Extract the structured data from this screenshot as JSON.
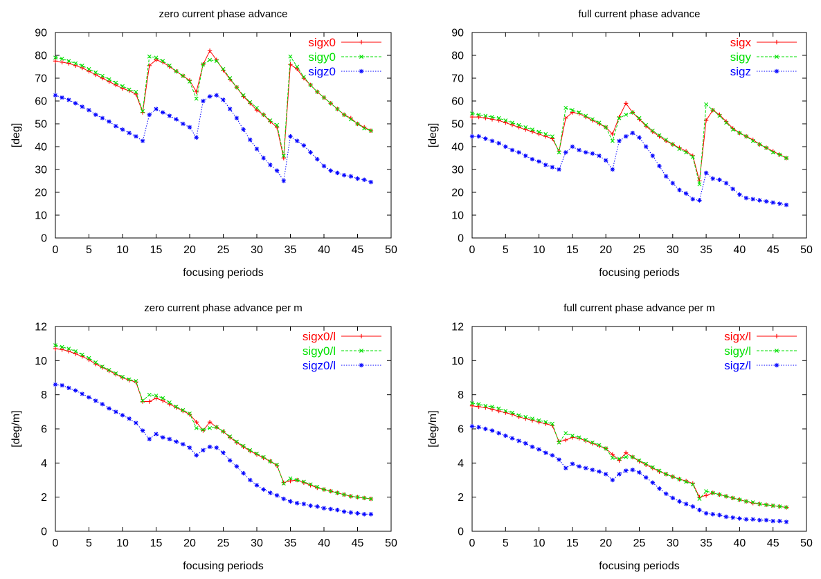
{
  "colors": {
    "x": "#ff0000",
    "y": "#00e000",
    "z": "#0000ff",
    "axis": "#000000"
  },
  "chart_data": [
    {
      "type": "line",
      "title": "zero current phase advance",
      "xlabel": "focusing periods",
      "ylabel": "[deg]",
      "xlim": [
        0,
        50
      ],
      "ylim": [
        0,
        90
      ],
      "xticks": [
        0,
        5,
        10,
        15,
        20,
        25,
        30,
        35,
        40,
        45,
        50
      ],
      "yticks": [
        0,
        10,
        20,
        30,
        40,
        50,
        60,
        70,
        80,
        90
      ],
      "legend_position": "top-right",
      "grid": false,
      "x": [
        0,
        1,
        2,
        3,
        4,
        5,
        6,
        7,
        8,
        9,
        10,
        11,
        12,
        13,
        14,
        15,
        16,
        17,
        18,
        19,
        20,
        21,
        22,
        23,
        24,
        25,
        26,
        27,
        28,
        29,
        30,
        31,
        32,
        33,
        34,
        35,
        36,
        37,
        38,
        39,
        40,
        41,
        42,
        43,
        44,
        45,
        46,
        47
      ],
      "series": [
        {
          "name": "sigx0",
          "style": "solid",
          "marker": "+",
          "color_key": "x",
          "values": [
            77.5,
            77,
            76.5,
            75.5,
            74.5,
            73,
            71.5,
            70,
            68.5,
            67,
            65.5,
            64.5,
            63,
            55,
            75.5,
            78,
            77,
            75,
            73,
            71,
            69,
            64,
            76,
            82,
            78,
            73.5,
            69.5,
            66,
            62,
            59,
            56,
            54,
            51,
            48.5,
            35,
            76,
            74,
            70,
            67,
            64,
            61.5,
            59,
            56.5,
            54,
            52.5,
            50,
            48.5,
            47
          ]
        },
        {
          "name": "sigy0",
          "style": "dashed",
          "marker": "x",
          "color_key": "y",
          "values": [
            79,
            78.5,
            77.5,
            76.5,
            75.5,
            74,
            72.5,
            71,
            69.5,
            68,
            66.5,
            65,
            64,
            55.5,
            79.5,
            79,
            77.5,
            75.5,
            73,
            71,
            68.5,
            61,
            76,
            78,
            77.5,
            74,
            70,
            66,
            62.5,
            59.5,
            57,
            54,
            51.5,
            49.5,
            36,
            79.5,
            75,
            70.5,
            67,
            64,
            61.5,
            59,
            56.5,
            54,
            52,
            50,
            48,
            47
          ]
        },
        {
          "name": "sigz0",
          "style": "dotted",
          "marker": "*",
          "color_key": "z",
          "values": [
            62.5,
            61.5,
            60.5,
            59,
            57.5,
            56,
            54,
            52.5,
            51,
            49,
            47.5,
            46,
            44.5,
            42.5,
            54,
            56.5,
            55,
            53.5,
            52,
            50,
            48.5,
            44,
            60,
            62,
            62.5,
            60.5,
            56.5,
            52.5,
            47.5,
            43,
            39,
            35,
            32,
            29.5,
            25,
            44.5,
            42.5,
            40.5,
            37.5,
            34.5,
            31.5,
            29.5,
            28.5,
            27.5,
            27,
            26,
            25.5,
            24.5
          ]
        }
      ]
    },
    {
      "type": "line",
      "title": "full current phase advance",
      "xlabel": "focusing periods",
      "ylabel": "[deg]",
      "xlim": [
        0,
        50
      ],
      "ylim": [
        0,
        90
      ],
      "xticks": [
        0,
        5,
        10,
        15,
        20,
        25,
        30,
        35,
        40,
        45,
        50
      ],
      "yticks": [
        0,
        10,
        20,
        30,
        40,
        50,
        60,
        70,
        80,
        90
      ],
      "legend_position": "top-right",
      "grid": false,
      "x": [
        0,
        1,
        2,
        3,
        4,
        5,
        6,
        7,
        8,
        9,
        10,
        11,
        12,
        13,
        14,
        15,
        16,
        17,
        18,
        19,
        20,
        21,
        22,
        23,
        24,
        25,
        26,
        27,
        28,
        29,
        30,
        31,
        32,
        33,
        34,
        35,
        36,
        37,
        38,
        39,
        40,
        41,
        42,
        43,
        44,
        45,
        46,
        47
      ],
      "series": [
        {
          "name": "sigx",
          "style": "solid",
          "marker": "+",
          "color_key": "x",
          "values": [
            53,
            53,
            52.5,
            52,
            51.5,
            50.5,
            49.5,
            48.5,
            47.5,
            46.5,
            45.5,
            44.5,
            43.5,
            38,
            52.5,
            55,
            54.5,
            53,
            51.5,
            50,
            48.5,
            45.5,
            53,
            59,
            55,
            52,
            49,
            46.5,
            44.5,
            42.5,
            41,
            39.5,
            38,
            36,
            25,
            51.5,
            56,
            54,
            51,
            48,
            46,
            44.5,
            43,
            41,
            39.5,
            38,
            36.5,
            35
          ]
        },
        {
          "name": "sigy",
          "style": "dashed",
          "marker": "x",
          "color_key": "y",
          "values": [
            54.5,
            54,
            53.5,
            53,
            52.5,
            51.5,
            50.5,
            49.5,
            48.5,
            47.5,
            46.5,
            45.5,
            44.5,
            37.5,
            57,
            56,
            55,
            53.5,
            52,
            50.5,
            48.5,
            42.5,
            52.5,
            54,
            55,
            52.5,
            49.5,
            47,
            45,
            43,
            41,
            39,
            37.5,
            35.5,
            23.5,
            58.5,
            56,
            53.5,
            50.5,
            47.5,
            46,
            44.5,
            42.5,
            41,
            39.5,
            37.5,
            36.5,
            35
          ]
        },
        {
          "name": "sigz",
          "style": "dotted",
          "marker": "*",
          "color_key": "z",
          "values": [
            44.5,
            44.5,
            43.5,
            42.5,
            41.5,
            40,
            38.5,
            37.5,
            36,
            34.5,
            33.5,
            32,
            31,
            30,
            37.5,
            40,
            38.5,
            37.5,
            37,
            36,
            34,
            30,
            42.5,
            44.5,
            46,
            44,
            40,
            36,
            31.5,
            27,
            24,
            21,
            19.5,
            17,
            16.5,
            28.5,
            26,
            25.5,
            24,
            21.5,
            19,
            17.5,
            17,
            16.5,
            16,
            15.5,
            15,
            14.5
          ]
        }
      ]
    },
    {
      "type": "line",
      "title": "zero current phase advance per m",
      "xlabel": "focusing periods",
      "ylabel": "[deg/m]",
      "xlim": [
        0,
        50
      ],
      "ylim": [
        0,
        12
      ],
      "xticks": [
        0,
        5,
        10,
        15,
        20,
        25,
        30,
        35,
        40,
        45,
        50
      ],
      "yticks": [
        0,
        2,
        4,
        6,
        8,
        10,
        12
      ],
      "legend_position": "top-right",
      "grid": false,
      "x": [
        0,
        1,
        2,
        3,
        4,
        5,
        6,
        7,
        8,
        9,
        10,
        11,
        12,
        13,
        14,
        15,
        16,
        17,
        18,
        19,
        20,
        21,
        22,
        23,
        24,
        25,
        26,
        27,
        28,
        29,
        30,
        31,
        32,
        33,
        34,
        35,
        36,
        37,
        38,
        39,
        40,
        41,
        42,
        43,
        44,
        45,
        46,
        47
      ],
      "series": [
        {
          "name": "sigx0/l",
          "style": "solid",
          "marker": "+",
          "color_key": "x",
          "values": [
            10.7,
            10.65,
            10.55,
            10.4,
            10.25,
            10.05,
            9.8,
            9.6,
            9.4,
            9.2,
            9,
            8.85,
            8.75,
            7.6,
            7.6,
            7.8,
            7.65,
            7.45,
            7.25,
            7.05,
            6.85,
            6.4,
            5.9,
            6.4,
            6.1,
            5.85,
            5.5,
            5.2,
            4.95,
            4.7,
            4.5,
            4.3,
            4.1,
            3.85,
            2.85,
            2.95,
            3,
            2.85,
            2.7,
            2.55,
            2.45,
            2.35,
            2.25,
            2.15,
            2.05,
            2,
            1.95,
            1.9
          ]
        },
        {
          "name": "sigy0/l",
          "style": "dashed",
          "marker": "x",
          "color_key": "y",
          "values": [
            10.9,
            10.8,
            10.7,
            10.55,
            10.35,
            10.15,
            9.9,
            9.65,
            9.45,
            9.25,
            9.05,
            8.9,
            8.8,
            7.65,
            8,
            7.95,
            7.8,
            7.55,
            7.3,
            7.1,
            6.9,
            6.05,
            5.95,
            6.05,
            6.1,
            5.85,
            5.55,
            5.25,
            5,
            4.75,
            4.55,
            4.35,
            4.1,
            3.9,
            2.8,
            3.1,
            3,
            2.9,
            2.75,
            2.6,
            2.45,
            2.35,
            2.25,
            2.15,
            2.05,
            2,
            1.95,
            1.9
          ]
        },
        {
          "name": "sigz0/l",
          "style": "dotted",
          "marker": "*",
          "color_key": "z",
          "values": [
            8.6,
            8.55,
            8.4,
            8.25,
            8.05,
            7.85,
            7.65,
            7.45,
            7.2,
            7,
            6.8,
            6.6,
            6.35,
            5.9,
            5.4,
            5.7,
            5.5,
            5.4,
            5.25,
            5.1,
            4.9,
            4.45,
            4.75,
            4.95,
            4.9,
            4.6,
            4.15,
            3.8,
            3.4,
            3,
            2.7,
            2.45,
            2.25,
            2.1,
            1.9,
            1.75,
            1.65,
            1.6,
            1.5,
            1.45,
            1.35,
            1.3,
            1.25,
            1.15,
            1.1,
            1.05,
            1,
            1
          ]
        }
      ]
    },
    {
      "type": "line",
      "title": "full current phase advance per m",
      "xlabel": "focusing periods",
      "ylabel": "[deg/m]",
      "xlim": [
        0,
        50
      ],
      "ylim": [
        0,
        12
      ],
      "xticks": [
        0,
        5,
        10,
        15,
        20,
        25,
        30,
        35,
        40,
        45,
        50
      ],
      "yticks": [
        0,
        2,
        4,
        6,
        8,
        10,
        12
      ],
      "legend_position": "top-right",
      "grid": false,
      "x": [
        0,
        1,
        2,
        3,
        4,
        5,
        6,
        7,
        8,
        9,
        10,
        11,
        12,
        13,
        14,
        15,
        16,
        17,
        18,
        19,
        20,
        21,
        22,
        23,
        24,
        25,
        26,
        27,
        28,
        29,
        30,
        31,
        32,
        33,
        34,
        35,
        36,
        37,
        38,
        39,
        40,
        41,
        42,
        43,
        44,
        45,
        46,
        47
      ],
      "series": [
        {
          "name": "sigx/l",
          "style": "solid",
          "marker": "+",
          "color_key": "x",
          "values": [
            7.35,
            7.3,
            7.25,
            7.15,
            7.05,
            6.95,
            6.85,
            6.7,
            6.6,
            6.5,
            6.4,
            6.3,
            6.2,
            5.25,
            5.35,
            5.5,
            5.45,
            5.3,
            5.15,
            5,
            4.85,
            4.5,
            4.15,
            4.6,
            4.35,
            4.1,
            3.9,
            3.7,
            3.5,
            3.35,
            3.2,
            3.05,
            2.95,
            2.8,
            2,
            2.1,
            2.25,
            2.15,
            2.05,
            1.95,
            1.85,
            1.75,
            1.65,
            1.6,
            1.55,
            1.5,
            1.45,
            1.4
          ]
        },
        {
          "name": "sigy/l",
          "style": "dashed",
          "marker": "x",
          "color_key": "y",
          "values": [
            7.5,
            7.45,
            7.35,
            7.3,
            7.2,
            7.05,
            6.95,
            6.8,
            6.7,
            6.6,
            6.5,
            6.4,
            6.3,
            5.2,
            5.75,
            5.6,
            5.5,
            5.35,
            5.2,
            5.05,
            4.85,
            4.3,
            4.25,
            4.35,
            4.35,
            4.15,
            3.95,
            3.75,
            3.55,
            3.35,
            3.2,
            3.05,
            2.9,
            2.75,
            1.9,
            2.35,
            2.25,
            2.15,
            2.05,
            1.95,
            1.85,
            1.75,
            1.7,
            1.6,
            1.55,
            1.5,
            1.45,
            1.4
          ]
        },
        {
          "name": "sigz/l",
          "style": "dotted",
          "marker": "*",
          "color_key": "z",
          "values": [
            6.15,
            6.1,
            6,
            5.9,
            5.75,
            5.6,
            5.45,
            5.3,
            5.15,
            4.95,
            4.8,
            4.6,
            4.45,
            4.2,
            3.7,
            3.95,
            3.8,
            3.7,
            3.6,
            3.5,
            3.35,
            3,
            3.35,
            3.55,
            3.6,
            3.45,
            3.15,
            2.85,
            2.5,
            2.2,
            1.95,
            1.75,
            1.6,
            1.45,
            1.25,
            1.05,
            1,
            0.95,
            0.85,
            0.8,
            0.75,
            0.7,
            0.7,
            0.65,
            0.65,
            0.6,
            0.6,
            0.55
          ]
        }
      ]
    }
  ]
}
